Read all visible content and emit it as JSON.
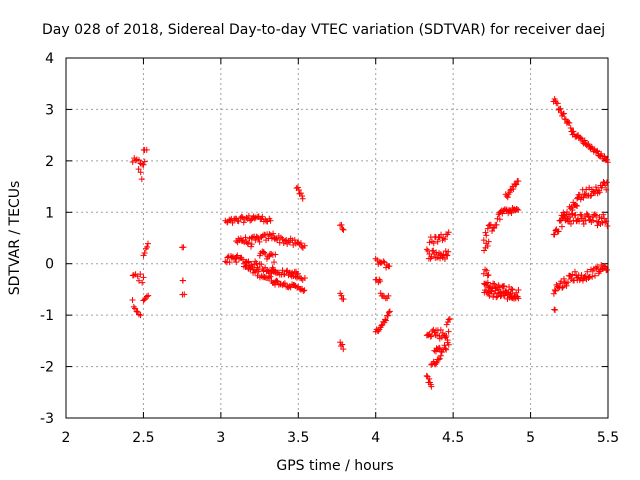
{
  "chart_data": {
    "type": "scatter",
    "title": "Day 028 of 2018, Sidereal Day-to-day VTEC variation (SDTVAR) for receiver daej",
    "xlabel": "GPS time / hours",
    "ylabel": "SDTVAR / TECUs",
    "xlim": [
      2,
      5.5
    ],
    "ylim": [
      -3,
      4
    ],
    "xticks": [
      2,
      2.5,
      3,
      3.5,
      4,
      4.5,
      5,
      5.5
    ],
    "xtick_labels": [
      "2",
      "2.5",
      "3",
      "3.5",
      "4",
      "4.5",
      "5",
      "5.5"
    ],
    "yticks": [
      -3,
      -2,
      -1,
      0,
      1,
      2,
      3,
      4
    ],
    "ytick_labels": [
      "-3",
      "-2",
      "-1",
      "0",
      "1",
      "2",
      "3",
      "4"
    ],
    "grid": true,
    "marker": "+",
    "color": "#ff0000",
    "series": [
      {
        "name": "SDTVAR",
        "segments": [
          {
            "x": [
              2.43,
              2.51
            ],
            "y": [
              2.0,
              1.95
            ],
            "noise": 0.06,
            "step": 0.01
          },
          {
            "x": [
              2.5,
              2.52
            ],
            "y": [
              2.2,
              2.22
            ],
            "noise": 0.02,
            "step": 0.01
          },
          {
            "x": [
              2.47,
              2.49
            ],
            "y": [
              1.85,
              1.65
            ],
            "noise": 0.04,
            "step": 0.01
          },
          {
            "x": [
              2.43,
              2.5
            ],
            "y": [
              -0.15,
              -0.35
            ],
            "noise": 0.12,
            "step": 0.01
          },
          {
            "x": [
              2.5,
              2.53
            ],
            "y": [
              0.2,
              0.4
            ],
            "noise": 0.05,
            "step": 0.008
          },
          {
            "x": [
              2.43,
              2.48
            ],
            "y": [
              -0.75,
              -1.0
            ],
            "noise": 0.05,
            "step": 0.008
          },
          {
            "x": [
              2.5,
              2.53
            ],
            "y": [
              -0.75,
              -0.6
            ],
            "noise": 0.05,
            "step": 0.008
          },
          {
            "x": [
              2.75,
              2.76
            ],
            "y": [
              0.3,
              0.32
            ],
            "noise": 0.02,
            "step": 0.01
          },
          {
            "x": [
              2.75,
              2.76
            ],
            "y": [
              -0.33,
              -0.33
            ],
            "noise": 0.01,
            "step": 0.02
          },
          {
            "x": [
              2.75,
              2.76
            ],
            "y": [
              -0.6,
              -0.6
            ],
            "noise": 0.01,
            "step": 0.02
          },
          {
            "x": [
              3.03,
              3.22
            ],
            "y": [
              0.8,
              0.9
            ],
            "noise": 0.06,
            "step": 0.008
          },
          {
            "x": [
              3.22,
              3.32
            ],
            "y": [
              0.9,
              0.85
            ],
            "noise": 0.05,
            "step": 0.008
          },
          {
            "x": [
              3.03,
              3.1
            ],
            "y": [
              0.05,
              0.1
            ],
            "noise": 0.08,
            "step": 0.007
          },
          {
            "x": [
              3.1,
              3.2
            ],
            "y": [
              0.5,
              0.4
            ],
            "noise": 0.08,
            "step": 0.007
          },
          {
            "x": [
              3.2,
              3.35
            ],
            "y": [
              0.45,
              0.55
            ],
            "noise": 0.07,
            "step": 0.007
          },
          {
            "x": [
              3.35,
              3.54
            ],
            "y": [
              0.5,
              0.35
            ],
            "noise": 0.07,
            "step": 0.008
          },
          {
            "x": [
              3.1,
              3.35
            ],
            "y": [
              0.1,
              -0.15
            ],
            "noise": 0.07,
            "step": 0.008
          },
          {
            "x": [
              3.32,
              3.5
            ],
            "y": [
              -0.15,
              -0.2
            ],
            "noise": 0.05,
            "step": 0.008
          },
          {
            "x": [
              3.15,
              3.35
            ],
            "y": [
              -0.05,
              -0.35
            ],
            "noise": 0.06,
            "step": 0.008
          },
          {
            "x": [
              3.35,
              3.54
            ],
            "y": [
              -0.35,
              -0.5
            ],
            "noise": 0.04,
            "step": 0.008
          },
          {
            "x": [
              3.25,
              3.35
            ],
            "y": [
              0.2,
              0.1
            ],
            "noise": 0.08,
            "step": 0.008
          },
          {
            "x": [
              3.45,
              3.54
            ],
            "y": [
              -0.2,
              -0.3
            ],
            "noise": 0.05,
            "step": 0.01
          },
          {
            "x": [
              3.49,
              3.53
            ],
            "y": [
              1.5,
              1.25
            ],
            "noise": 0.04,
            "step": 0.007
          },
          {
            "x": [
              3.77,
              3.79
            ],
            "y": [
              0.75,
              0.68
            ],
            "noise": 0.03,
            "step": 0.007
          },
          {
            "x": [
              3.77,
              3.79
            ],
            "y": [
              -0.6,
              -0.7
            ],
            "noise": 0.04,
            "step": 0.007
          },
          {
            "x": [
              3.77,
              3.79
            ],
            "y": [
              -1.55,
              -1.65
            ],
            "noise": 0.05,
            "step": 0.006
          },
          {
            "x": [
              4.0,
              4.09
            ],
            "y": [
              0.05,
              -0.05
            ],
            "noise": 0.06,
            "step": 0.008
          },
          {
            "x": [
              4.0,
              4.03
            ],
            "y": [
              -0.3,
              -0.35
            ],
            "noise": 0.04,
            "step": 0.007
          },
          {
            "x": [
              4.03,
              4.08
            ],
            "y": [
              -0.6,
              -0.65
            ],
            "noise": 0.05,
            "step": 0.008
          },
          {
            "x": [
              4.0,
              4.09
            ],
            "y": [
              -1.35,
              -0.95
            ],
            "noise": 0.05,
            "step": 0.006
          },
          {
            "x": [
              4.33,
              4.47
            ],
            "y": [
              0.2,
              0.15
            ],
            "noise": 0.1,
            "step": 0.006
          },
          {
            "x": [
              4.35,
              4.47
            ],
            "y": [
              0.45,
              0.55
            ],
            "noise": 0.08,
            "step": 0.008
          },
          {
            "x": [
              4.33,
              4.47
            ],
            "y": [
              -1.3,
              -1.4
            ],
            "noise": 0.1,
            "step": 0.006
          },
          {
            "x": [
              4.38,
              4.47
            ],
            "y": [
              -1.7,
              -1.6
            ],
            "noise": 0.08,
            "step": 0.007
          },
          {
            "x": [
              4.33,
              4.36
            ],
            "y": [
              -2.2,
              -2.35
            ],
            "noise": 0.06,
            "step": 0.005
          },
          {
            "x": [
              4.36,
              4.42
            ],
            "y": [
              -2.0,
              -1.8
            ],
            "noise": 0.06,
            "step": 0.007
          },
          {
            "x": [
              4.46,
              4.48
            ],
            "y": [
              -1.15,
              -1.1
            ],
            "noise": 0.04,
            "step": 0.007
          },
          {
            "x": [
              4.7,
              4.8
            ],
            "y": [
              0.55,
              0.9
            ],
            "noise": 0.1,
            "step": 0.007
          },
          {
            "x": [
              4.8,
              4.92
            ],
            "y": [
              1.0,
              1.05
            ],
            "noise": 0.05,
            "step": 0.006
          },
          {
            "x": [
              4.84,
              4.92
            ],
            "y": [
              1.3,
              1.6
            ],
            "noise": 0.06,
            "step": 0.006
          },
          {
            "x": [
              4.7,
              4.73
            ],
            "y": [
              0.3,
              0.4
            ],
            "noise": 0.05,
            "step": 0.008
          },
          {
            "x": [
              4.7,
              4.92
            ],
            "y": [
              -0.4,
              -0.6
            ],
            "noise": 0.1,
            "step": 0.006
          },
          {
            "x": [
              4.7,
              4.92
            ],
            "y": [
              -0.55,
              -0.65
            ],
            "noise": 0.08,
            "step": 0.007
          },
          {
            "x": [
              4.7,
              4.73
            ],
            "y": [
              -0.2,
              -0.15
            ],
            "noise": 0.08,
            "step": 0.007
          },
          {
            "x": [
              5.15,
              5.27
            ],
            "y": [
              3.2,
              2.6
            ],
            "noise": 0.06,
            "step": 0.006
          },
          {
            "x": [
              5.27,
              5.5
            ],
            "y": [
              2.55,
              2.0
            ],
            "noise": 0.04,
            "step": 0.006
          },
          {
            "x": [
              5.15,
              5.3
            ],
            "y": [
              0.6,
              1.2
            ],
            "noise": 0.1,
            "step": 0.006
          },
          {
            "x": [
              5.3,
              5.5
            ],
            "y": [
              1.3,
              1.55
            ],
            "noise": 0.1,
            "step": 0.006
          },
          {
            "x": [
              5.2,
              5.5
            ],
            "y": [
              0.9,
              0.85
            ],
            "noise": 0.12,
            "step": 0.006
          },
          {
            "x": [
              5.15,
              5.3
            ],
            "y": [
              -0.5,
              -0.2
            ],
            "noise": 0.1,
            "step": 0.006
          },
          {
            "x": [
              5.3,
              5.5
            ],
            "y": [
              -0.3,
              -0.05
            ],
            "noise": 0.08,
            "step": 0.006
          },
          {
            "x": [
              5.15,
              5.16
            ],
            "y": [
              -0.9,
              -0.9
            ],
            "noise": 0.01,
            "step": 0.02
          }
        ]
      }
    ]
  }
}
